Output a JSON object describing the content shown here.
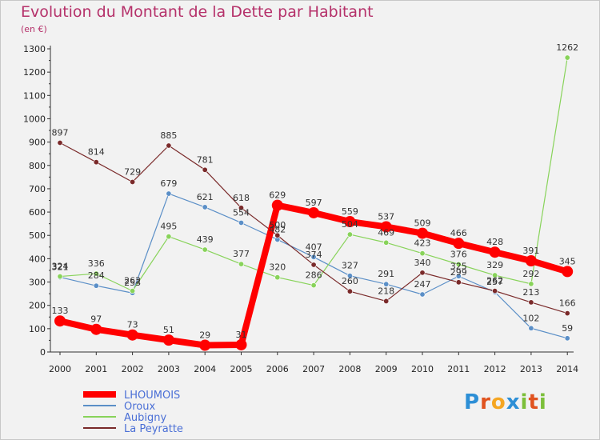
{
  "header": {
    "title": "Evolution du Montant de la Dette par Habitant",
    "unit": "(en €)"
  },
  "logo": {
    "text": "Proxiti",
    "letters": [
      "P",
      "r",
      "o",
      "x",
      "i",
      "t",
      "i"
    ],
    "colors": [
      "#2d8fd6",
      "#e0531f",
      "#f5a623",
      "#2d8fd6",
      "#7cbf3a",
      "#e0531f",
      "#7cbf3a"
    ]
  },
  "chart_data": {
    "type": "line",
    "title": "Evolution du Montant de la Dette par Habitant",
    "subtitle": "(en €)",
    "xlabel": "",
    "ylabel": "",
    "ylim": [
      0,
      1300
    ],
    "yticks": [
      0,
      100,
      200,
      300,
      400,
      500,
      600,
      700,
      800,
      900,
      1000,
      1100,
      1200,
      1300
    ],
    "grid": false,
    "legend_position": "bottom-left",
    "categories": [
      "2000",
      "2001",
      "2002",
      "2003",
      "2004",
      "2005",
      "2006",
      "2007",
      "2008",
      "2009",
      "2010",
      "2011",
      "2012",
      "2013",
      "2014"
    ],
    "series": [
      {
        "name": "LHOUMOIS",
        "color": "#ff0000",
        "values": [
          133,
          97,
          73,
          51,
          29,
          31,
          629,
          597,
          559,
          537,
          509,
          466,
          428,
          391,
          345
        ],
        "labels": [
          "133",
          "97",
          "73",
          "51",
          "29",
          "31",
          "629",
          "597",
          "559",
          "537",
          "509",
          "466",
          "428",
          "391",
          "345"
        ]
      },
      {
        "name": "Oroux",
        "color": "#5b8fc7",
        "values": [
          321,
          284,
          253,
          679,
          621,
          554,
          482,
          407,
          327,
          291,
          247,
          325,
          257,
          102,
          59
        ],
        "labels": [
          "321",
          "284",
          "253",
          "679",
          "621",
          "554",
          "482",
          "407",
          "327",
          "291",
          "247",
          "325",
          "257",
          "102",
          "59"
        ]
      },
      {
        "name": "Aubigny",
        "color": "#88d35a",
        "values": [
          324,
          336,
          262,
          495,
          439,
          377,
          320,
          286,
          504,
          469,
          423,
          376,
          329,
          292,
          1262
        ],
        "labels": [
          "324",
          "336",
          "262",
          "495",
          "439",
          "377",
          "320",
          "286",
          "504",
          "469",
          "423",
          "376",
          "329",
          "292",
          "1262"
        ]
      },
      {
        "name": "La Peyratte",
        "color": "#7a2a2a",
        "values": [
          897,
          814,
          729,
          885,
          781,
          618,
          500,
          374,
          260,
          218,
          340,
          299,
          262,
          213,
          166
        ],
        "labels": [
          "897",
          "814",
          "729",
          "885",
          "781",
          "618",
          "500",
          "374",
          "260",
          "218",
          "340",
          "299",
          "262",
          "213",
          "166"
        ]
      }
    ]
  }
}
